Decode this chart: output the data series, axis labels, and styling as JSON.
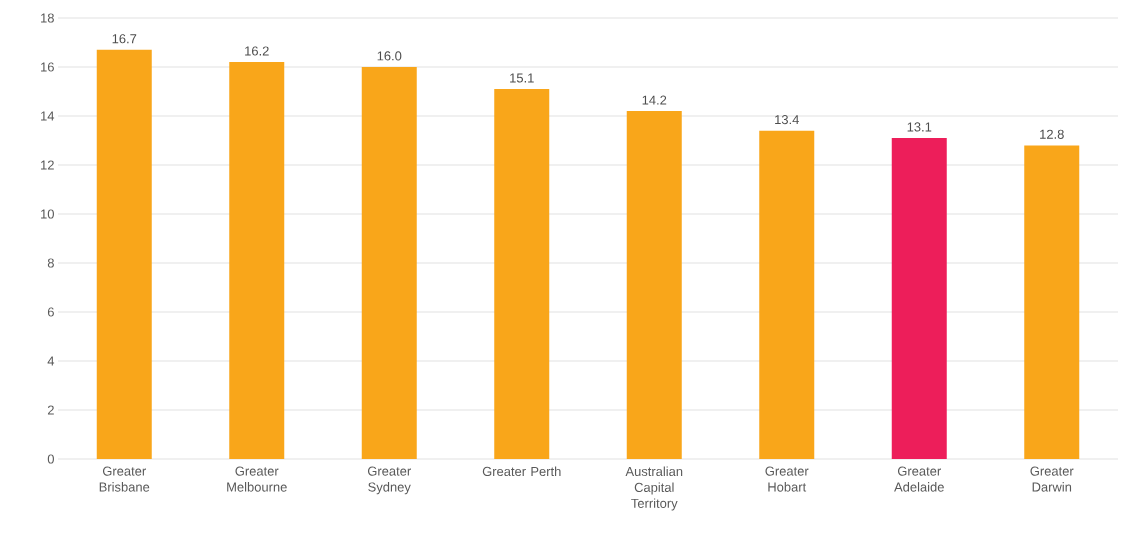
{
  "chart_data": {
    "type": "bar",
    "categories": [
      "Greater Brisbane",
      "Greater Melbourne",
      "Greater Sydney",
      "Greater Perth",
      "Australian Capital Territory",
      "Greater Hobart",
      "Greater Adelaide",
      "Greater Darwin"
    ],
    "values": [
      16.7,
      16.2,
      16.0,
      15.1,
      14.2,
      13.4,
      13.1,
      12.8
    ],
    "value_labels": [
      "16.7",
      "16.2",
      "16.0",
      "15.1",
      "14.2",
      "13.4",
      "13.1",
      "12.8"
    ],
    "colors": [
      "#f9a61a",
      "#f9a61a",
      "#f9a61a",
      "#f9a61a",
      "#f9a61a",
      "#f9a61a",
      "#ed1e5a",
      "#f9a61a"
    ],
    "ylim": [
      0,
      18
    ],
    "yticks": [
      0,
      2,
      4,
      6,
      8,
      10,
      12,
      14,
      16,
      18
    ],
    "grid": "y"
  }
}
